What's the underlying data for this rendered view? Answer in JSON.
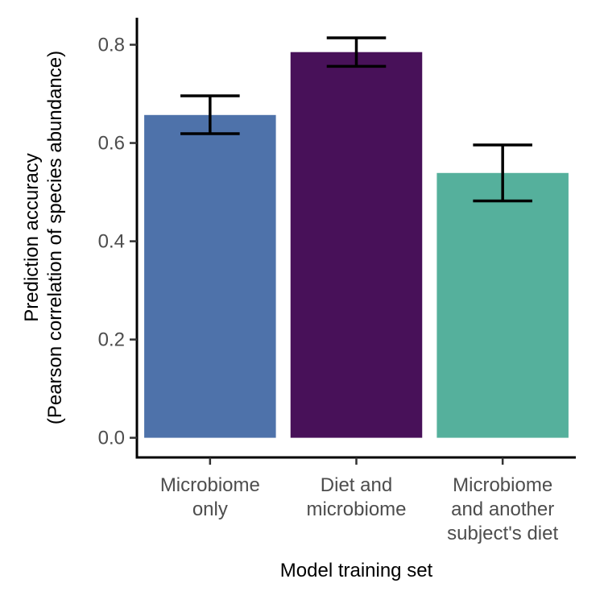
{
  "chart_data": {
    "type": "bar",
    "categories": [
      [
        "Microbiome",
        "only"
      ],
      [
        "Diet and",
        "microbiome"
      ],
      [
        "Microbiome",
        "and another",
        "subject's diet"
      ]
    ],
    "values": [
      0.657,
      0.785,
      0.539
    ],
    "error_bars": [
      {
        "low": 0.619,
        "high": 0.696
      },
      {
        "low": 0.756,
        "high": 0.814
      },
      {
        "low": 0.482,
        "high": 0.596
      }
    ],
    "colors": [
      "#4e72aa",
      "#481159",
      "#55b09c"
    ],
    "xlabel": "Model training set",
    "ylabel": [
      "Prediction accuracy",
      "(Pearson correlation of species abundance)"
    ],
    "ylim": [
      -0.04,
      0.855
    ],
    "yticks": [
      0.0,
      0.2,
      0.4,
      0.6,
      0.8
    ],
    "ytick_labels": [
      "0.0",
      "0.2",
      "0.4",
      "0.6",
      "0.8"
    ],
    "grid": false,
    "legend": "none"
  }
}
